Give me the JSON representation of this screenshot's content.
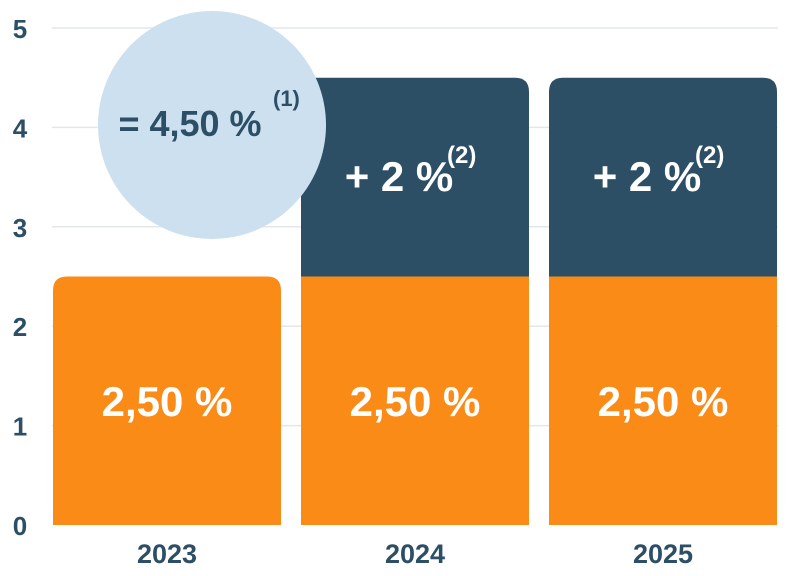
{
  "chart_data": {
    "type": "bar",
    "stacked": true,
    "categories": [
      "2023",
      "2024",
      "2025"
    ],
    "ylim": [
      0,
      5
    ],
    "yticks": [
      "0",
      "1",
      "2",
      "3",
      "4",
      "5"
    ],
    "grid": true,
    "series": [
      {
        "color": "#fb8b17",
        "values": [
          2.5,
          2.5,
          2.5
        ],
        "labels": [
          "2,50 %",
          "2,50 %",
          "2,50 %"
        ],
        "superscripts": [
          "",
          "",
          ""
        ]
      },
      {
        "color": "#2d4f66",
        "values": [
          0,
          2,
          2
        ],
        "labels": [
          "",
          "+ 2 %",
          "+ 2 %"
        ],
        "superscripts": [
          "",
          "(2)",
          "(2)"
        ]
      }
    ],
    "annotation": {
      "text": "= 4,50 %",
      "superscript": "(1)",
      "color": "#cde0ef"
    }
  }
}
